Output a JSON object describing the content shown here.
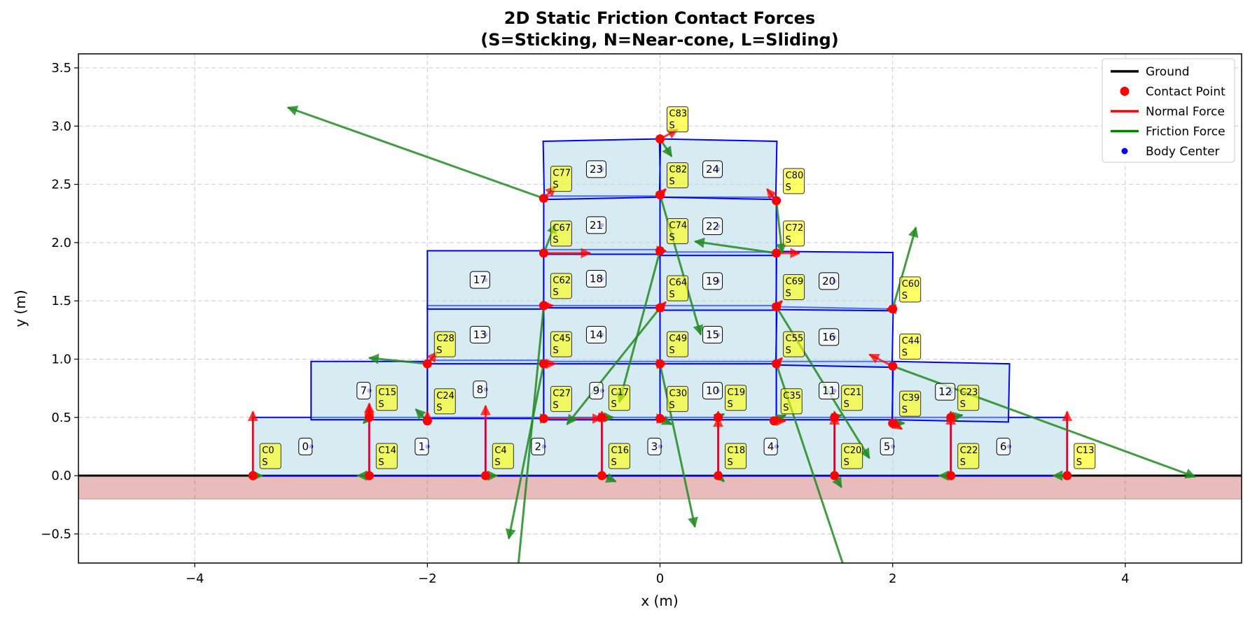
{
  "chart_data": {
    "type": "scatter",
    "title": "2D Static Friction Contact Forces\n(S=Sticking, N=Near-cone, L=Sliding)",
    "xlabel": "x (m)",
    "ylabel": "y (m)",
    "xlim": [
      -5,
      5
    ],
    "ylim": [
      -0.75,
      3.62
    ],
    "xticks": [
      -4,
      -2,
      0,
      2,
      4
    ],
    "yticks": [
      -0.5,
      0.0,
      0.5,
      1.0,
      1.5,
      2.0,
      2.5,
      3.0,
      3.5
    ],
    "xtick_labels": [
      "−4",
      "−2",
      "0",
      "2",
      "4"
    ],
    "ytick_labels": [
      "−0.5",
      "0.0",
      "0.5",
      "1.0",
      "1.5",
      "2.0",
      "2.5",
      "3.0",
      "3.5"
    ],
    "grid": true,
    "legend_position": "top-right",
    "legend": [
      {
        "label": "Ground",
        "kind": "line",
        "color": "#000000"
      },
      {
        "label": "Contact Point",
        "kind": "marker",
        "color": "#ff0000"
      },
      {
        "label": "Normal Force",
        "kind": "line",
        "color": "#ff0000"
      },
      {
        "label": "Friction Force",
        "kind": "line",
        "color": "#008000"
      },
      {
        "label": "Body Center",
        "kind": "dot",
        "color": "#0000ff"
      }
    ],
    "colors": {
      "box_fill": "#add8e6",
      "box_edge": "#0000ff",
      "ground_fill": "#b22222",
      "normal": "#ff0000",
      "friction": "#228b22",
      "contact_label_bg": "#ffff00"
    },
    "ground": {
      "y": 0.0,
      "depth": -0.2
    },
    "bodies": [
      {
        "id": "0",
        "cx": -3.0,
        "cy": 0.25,
        "w": 1.0,
        "h": 0.5,
        "angle": 0.0
      },
      {
        "id": "1",
        "cx": -2.0,
        "cy": 0.25,
        "w": 1.0,
        "h": 0.5,
        "angle": 0.0
      },
      {
        "id": "2",
        "cx": -1.0,
        "cy": 0.25,
        "w": 1.0,
        "h": 0.5,
        "angle": 0.0
      },
      {
        "id": "3",
        "cx": 0.0,
        "cy": 0.25,
        "w": 1.0,
        "h": 0.5,
        "angle": 0.0
      },
      {
        "id": "4",
        "cx": 1.0,
        "cy": 0.25,
        "w": 1.0,
        "h": 0.5,
        "angle": 0.0
      },
      {
        "id": "5",
        "cx": 2.0,
        "cy": 0.25,
        "w": 1.0,
        "h": 0.5,
        "angle": 0.0
      },
      {
        "id": "6",
        "cx": 3.0,
        "cy": 0.25,
        "w": 1.0,
        "h": 0.5,
        "angle": 0.0
      },
      {
        "id": "7",
        "cx": -2.5,
        "cy": 0.73,
        "w": 1.0,
        "h": 0.5,
        "angle": 0.0
      },
      {
        "id": "8",
        "cx": -1.5,
        "cy": 0.74,
        "w": 1.0,
        "h": 0.5,
        "angle": 0.0
      },
      {
        "id": "9",
        "cx": -0.5,
        "cy": 0.73,
        "w": 1.0,
        "h": 0.5,
        "angle": 0.0
      },
      {
        "id": "10",
        "cx": 0.5,
        "cy": 0.73,
        "w": 1.0,
        "h": 0.5,
        "angle": 0.0
      },
      {
        "id": "11",
        "cx": 1.5,
        "cy": 0.73,
        "w": 1.0,
        "h": 0.5,
        "angle": 0.0
      },
      {
        "id": "12",
        "cx": 2.5,
        "cy": 0.72,
        "w": 1.0,
        "h": 0.5,
        "angle": -0.02
      },
      {
        "id": "13",
        "cx": -1.5,
        "cy": 1.21,
        "w": 1.0,
        "h": 0.5,
        "angle": 0.0
      },
      {
        "id": "14",
        "cx": -0.5,
        "cy": 1.21,
        "w": 1.0,
        "h": 0.5,
        "angle": 0.0
      },
      {
        "id": "15",
        "cx": 0.5,
        "cy": 1.21,
        "w": 1.0,
        "h": 0.5,
        "angle": 0.0
      },
      {
        "id": "16",
        "cx": 1.5,
        "cy": 1.19,
        "w": 1.0,
        "h": 0.5,
        "angle": -0.02
      },
      {
        "id": "17",
        "cx": -1.5,
        "cy": 1.68,
        "w": 1.0,
        "h": 0.5,
        "angle": 0.0
      },
      {
        "id": "18",
        "cx": -0.5,
        "cy": 1.69,
        "w": 1.0,
        "h": 0.5,
        "angle": 0.0
      },
      {
        "id": "19",
        "cx": 0.5,
        "cy": 1.67,
        "w": 1.0,
        "h": 0.5,
        "angle": 0.0
      },
      {
        "id": "20",
        "cx": 1.5,
        "cy": 1.67,
        "w": 1.0,
        "h": 0.5,
        "angle": -0.01
      },
      {
        "id": "21",
        "cx": -0.5,
        "cy": 2.15,
        "w": 1.0,
        "h": 0.5,
        "angle": 0.0
      },
      {
        "id": "22",
        "cx": 0.5,
        "cy": 2.14,
        "w": 1.0,
        "h": 0.5,
        "angle": 0.0
      },
      {
        "id": "23",
        "cx": -0.5,
        "cy": 2.63,
        "w": 1.0,
        "h": 0.5,
        "angle": 0.02
      },
      {
        "id": "24",
        "cx": 0.5,
        "cy": 2.63,
        "w": 1.0,
        "h": 0.5,
        "angle": -0.02
      }
    ],
    "contacts": [
      {
        "id": "C0",
        "state": "S",
        "x": -3.5,
        "y": 0.0,
        "normal": [
          0.0,
          0.55
        ],
        "friction": [
          0.08,
          0.0
        ]
      },
      {
        "id": "C4",
        "state": "S",
        "x": -1.5,
        "y": 0.0,
        "normal": [
          0.0,
          0.6
        ],
        "friction": [
          0.1,
          0.0
        ]
      },
      {
        "id": "C13",
        "state": "S",
        "x": 3.5,
        "y": 0.0,
        "normal": [
          0.0,
          0.55
        ],
        "friction": [
          -0.12,
          0.0
        ]
      },
      {
        "id": "C14",
        "state": "S",
        "x": -2.5,
        "y": 0.0,
        "normal": [
          0.0,
          0.62
        ],
        "friction": [
          -0.1,
          0.0
        ]
      },
      {
        "id": "C15",
        "state": "S",
        "x": -2.5,
        "y": 0.5,
        "normal": [
          0.0,
          0.1
        ],
        "friction": [
          -0.05,
          -0.05
        ]
      },
      {
        "id": "C16",
        "state": "S",
        "x": -0.5,
        "y": 0.0,
        "normal": [
          0.0,
          0.55
        ],
        "friction": [
          0.12,
          -0.05
        ]
      },
      {
        "id": "C17",
        "state": "S",
        "x": -0.5,
        "y": 0.5,
        "normal": [
          0.05,
          0.0
        ],
        "friction": [
          0.1,
          0.0
        ]
      },
      {
        "id": "C18",
        "state": "S",
        "x": 0.5,
        "y": 0.0,
        "normal": [
          0.0,
          0.5
        ],
        "friction": [
          0.05,
          -0.05
        ]
      },
      {
        "id": "C19",
        "state": "S",
        "x": 0.5,
        "y": 0.5,
        "normal": [
          0.0,
          0.05
        ],
        "friction": [
          0.05,
          0.03
        ]
      },
      {
        "id": "C20",
        "state": "S",
        "x": 1.5,
        "y": 0.0,
        "normal": [
          0.0,
          0.52
        ],
        "friction": [
          0.06,
          -0.1
        ]
      },
      {
        "id": "C21",
        "state": "S",
        "x": 1.5,
        "y": 0.5,
        "normal": [
          0.0,
          0.05
        ],
        "friction": [
          0.06,
          0.02
        ]
      },
      {
        "id": "C22",
        "state": "S",
        "x": 2.5,
        "y": 0.0,
        "normal": [
          0.0,
          0.52
        ],
        "friction": [
          -0.1,
          0.0
        ]
      },
      {
        "id": "C23",
        "state": "S",
        "x": 2.5,
        "y": 0.5,
        "normal": [
          0.0,
          0.05
        ],
        "friction": [
          0.1,
          0.02
        ]
      },
      {
        "id": "C24",
        "state": "S",
        "x": -2.0,
        "y": 0.47,
        "normal": [
          0.0,
          0.08
        ],
        "friction": [
          -0.1,
          0.1
        ]
      },
      {
        "id": "C27",
        "state": "S",
        "x": -1.0,
        "y": 0.49,
        "normal": [
          0.5,
          0.0
        ],
        "friction": [
          0.05,
          0.0
        ]
      },
      {
        "id": "C28",
        "state": "S",
        "x": -2.0,
        "y": 0.96,
        "normal": [
          0.08,
          0.1
        ],
        "friction": [
          -0.5,
          0.05
        ]
      },
      {
        "id": "C30",
        "state": "S",
        "x": 0.0,
        "y": 0.49,
        "normal": [
          0.05,
          0.0
        ],
        "friction": [
          0.1,
          -0.05
        ]
      },
      {
        "id": "C35",
        "state": "S",
        "x": 0.98,
        "y": 0.47,
        "normal": [
          0.1,
          0.0
        ],
        "friction": [
          0.1,
          0.05
        ]
      },
      {
        "id": "C39",
        "state": "S",
        "x": 2.0,
        "y": 0.45,
        "normal": [
          0.08,
          -0.05
        ],
        "friction": [
          0.1,
          0.0
        ]
      },
      {
        "id": "C44",
        "state": "S",
        "x": 2.0,
        "y": 0.94,
        "normal": [
          -0.2,
          0.1
        ],
        "friction": [
          2.6,
          -0.95
        ]
      },
      {
        "id": "C45",
        "state": "S",
        "x": -1.0,
        "y": 0.96,
        "normal": [
          0.1,
          0.0
        ],
        "friction": [
          -0.3,
          -1.5
        ]
      },
      {
        "id": "C49",
        "state": "S",
        "x": 0.0,
        "y": 0.96,
        "normal": [
          0.05,
          0.0
        ],
        "friction": [
          0.3,
          -1.4
        ]
      },
      {
        "id": "C55",
        "state": "S",
        "x": 1.0,
        "y": 0.96,
        "normal": [
          0.05,
          0.05
        ],
        "friction": [
          0.6,
          -1.8
        ]
      },
      {
        "id": "C60",
        "state": "S",
        "x": 2.0,
        "y": 1.43,
        "normal": [
          -0.05,
          0.0
        ],
        "friction": [
          0.2,
          0.7
        ]
      },
      {
        "id": "C62",
        "state": "S",
        "x": -1.0,
        "y": 1.46,
        "normal": [
          0.08,
          0.0
        ],
        "friction": [
          -0.25,
          -2.55
        ]
      },
      {
        "id": "C64",
        "state": "S",
        "x": 0.0,
        "y": 1.44,
        "normal": [
          0.05,
          0.05
        ],
        "friction": [
          -0.8,
          -1.0
        ]
      },
      {
        "id": "C67",
        "state": "S",
        "x": -1.0,
        "y": 1.91,
        "normal": [
          0.4,
          0.0
        ],
        "friction": [
          0.1,
          0.25
        ]
      },
      {
        "id": "C69",
        "state": "S",
        "x": 1.0,
        "y": 1.45,
        "normal": [
          0.05,
          0.05
        ],
        "friction": [
          0.8,
          -1.3
        ]
      },
      {
        "id": "C72",
        "state": "S",
        "x": 1.0,
        "y": 1.91,
        "normal": [
          0.2,
          0.0
        ],
        "friction": [
          -0.7,
          0.1
        ]
      },
      {
        "id": "C74",
        "state": "S",
        "x": 0.0,
        "y": 1.93,
        "normal": [
          0.05,
          0.0
        ],
        "friction": [
          -0.35,
          -1.3
        ]
      },
      {
        "id": "C77",
        "state": "S",
        "x": -1.0,
        "y": 2.38,
        "normal": [
          0.1,
          0.1
        ],
        "friction": [
          -2.2,
          0.78
        ]
      },
      {
        "id": "C80",
        "state": "S",
        "x": 1.0,
        "y": 2.36,
        "normal": [
          -0.08,
          0.1
        ],
        "friction": [
          0.05,
          -0.45
        ]
      },
      {
        "id": "C82",
        "state": "S",
        "x": 0.0,
        "y": 2.41,
        "normal": [
          0.05,
          0.05
        ],
        "friction": [
          0.35,
          -1.2
        ]
      },
      {
        "id": "C83",
        "state": "S",
        "x": 0.0,
        "y": 2.89,
        "normal": [
          0.15,
          0.08
        ],
        "friction": [
          0.1,
          -0.15
        ]
      }
    ]
  }
}
